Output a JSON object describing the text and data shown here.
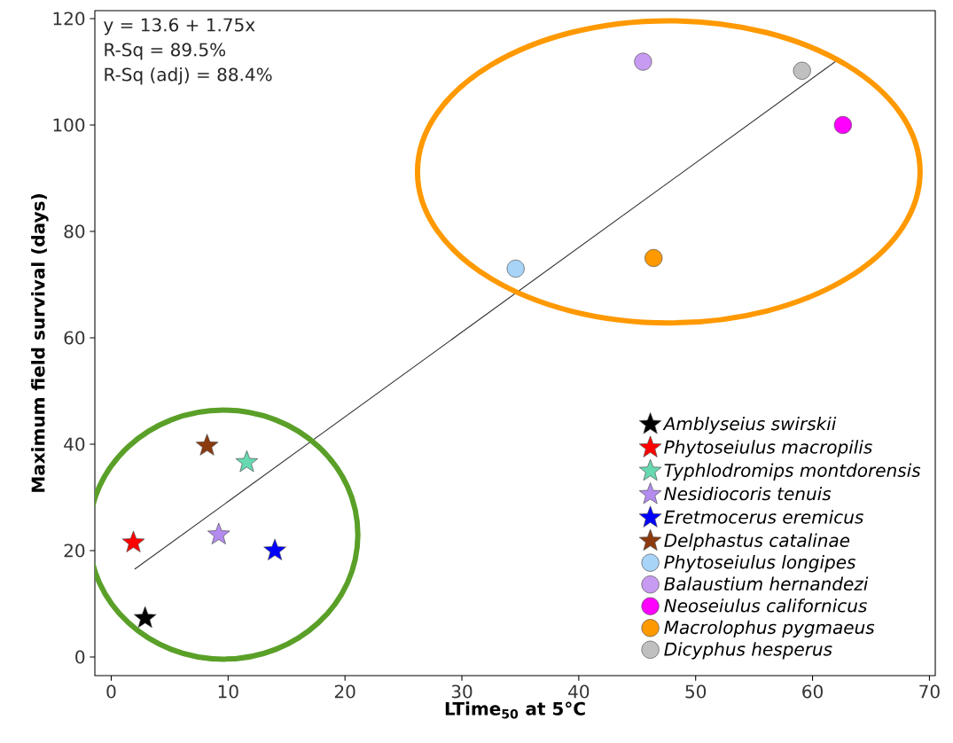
{
  "chart_data": {
    "type": "scatter",
    "xlabel": "LTime$_{50}$ at 5°C",
    "ylabel": "Maximum field survival (days)",
    "annotations": [
      "y = 13.6 + 1.75x",
      "R-Sq = 89.5%",
      "R-Sq (adj) = 88.4%"
    ],
    "xlim": [
      -1.4,
      70.5
    ],
    "ylim": [
      -3.5,
      121.5
    ],
    "xticks": [
      0,
      10,
      20,
      30,
      40,
      50,
      60,
      70
    ],
    "yticks": [
      0,
      20,
      40,
      60,
      80,
      100,
      120
    ],
    "grid": false,
    "legend": "bottom right",
    "series": [
      {
        "name": "Amblyseius swirskii",
        "color": "#000000",
        "marker": "star",
        "x": [
          2.9
        ],
        "values": [
          7.3
        ]
      },
      {
        "name": "Phytoseiulus macropilis",
        "color": "#ff0000",
        "marker": "star",
        "x": [
          1.9
        ],
        "values": [
          21.5
        ]
      },
      {
        "name": "Typhlodromips montdorensis",
        "color": "#66d9b0",
        "marker": "star",
        "x": [
          11.6
        ],
        "values": [
          36.6
        ]
      },
      {
        "name": "Nesidiocoris tenuis",
        "color": "#b48cf0",
        "marker": "star",
        "x": [
          9.2
        ],
        "values": [
          23
        ]
      },
      {
        "name": "Eretmocerus eremicus",
        "color": "#0000ff",
        "marker": "star",
        "x": [
          14
        ],
        "values": [
          20
        ]
      },
      {
        "name": "Delphastus catalinae",
        "color": "#8b3a0f",
        "marker": "star",
        "x": [
          8.2
        ],
        "values": [
          39.7
        ]
      },
      {
        "name": "Phytoseiulus longipes",
        "color": "#a8d4f8",
        "marker": "circle",
        "x": [
          34.6
        ],
        "values": [
          73
        ]
      },
      {
        "name": "Balaustium hernandezi",
        "color": "#c89bf2",
        "marker": "circle",
        "x": [
          45.5
        ],
        "values": [
          111.9
        ]
      },
      {
        "name": "Neoseiulus californicus",
        "color": "#ff00ff",
        "marker": "circle",
        "x": [
          62.6
        ],
        "values": [
          100
        ]
      },
      {
        "name": "Macrolophus pygmaeus",
        "color": "#ff9900",
        "marker": "circle",
        "x": [
          46.4
        ],
        "values": [
          75
        ]
      },
      {
        "name": "Dicyphus hesperus",
        "color": "#c0c0c0",
        "marker": "circle",
        "x": [
          59.1
        ],
        "values": [
          110.2
        ]
      },
      {
        "type": "line",
        "color": "#333333",
        "marker": "none",
        "x": [
          2,
          62
        ],
        "values": [
          16.5,
          112
        ]
      }
    ]
  }
}
